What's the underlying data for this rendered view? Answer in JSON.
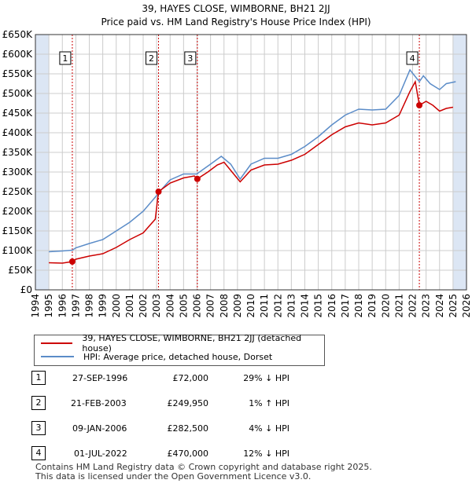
{
  "title": "39, HAYES CLOSE, WIMBORNE, BH21 2JJ",
  "subtitle": "Price paid vs. HM Land Registry's House Price Index (HPI)",
  "legend": {
    "property": "39, HAYES CLOSE, WIMBORNE, BH21 2JJ (detached house)",
    "hpi": "HPI: Average price, detached house, Dorset"
  },
  "colors": {
    "property": "#cc0000",
    "hpi": "#5b8cc8",
    "shade": "#dce6f4",
    "grid": "#cccccc"
  },
  "sales": [
    {
      "num": "1",
      "date": "27-SEP-1996",
      "price": "£72,000",
      "delta": "29% ↓ HPI"
    },
    {
      "num": "2",
      "date": "21-FEB-2003",
      "price": "£249,950",
      "delta": "1% ↑ HPI"
    },
    {
      "num": "3",
      "date": "09-JAN-2006",
      "price": "£282,500",
      "delta": "4% ↓ HPI"
    },
    {
      "num": "4",
      "date": "01-JUL-2022",
      "price": "£470,000",
      "delta": "12% ↓ HPI"
    }
  ],
  "footer": {
    "line1": "Contains HM Land Registry data © Crown copyright and database right 2025.",
    "line2": "This data is licensed under the Open Government Licence v3.0."
  },
  "chart_data": {
    "type": "line",
    "title": "39, HAYES CLOSE, WIMBORNE, BH21 2JJ",
    "subtitle": "Price paid vs. HM Land Registry's House Price Index (HPI)",
    "xlabel": "",
    "ylabel": "",
    "xlim": [
      1994,
      2026
    ],
    "ylim": [
      0,
      650000
    ],
    "x_ticks": [
      1994,
      1995,
      1996,
      1997,
      1998,
      1999,
      2000,
      2001,
      2002,
      2003,
      2004,
      2005,
      2006,
      2007,
      2008,
      2009,
      2010,
      2011,
      2012,
      2013,
      2014,
      2015,
      2016,
      2017,
      2018,
      2019,
      2020,
      2021,
      2022,
      2023,
      2024,
      2025,
      2026
    ],
    "y_ticks": [
      0,
      50000,
      100000,
      150000,
      200000,
      250000,
      300000,
      350000,
      400000,
      450000,
      500000,
      550000,
      600000,
      650000
    ],
    "y_tick_labels": [
      "£0",
      "£50K",
      "£100K",
      "£150K",
      "£200K",
      "£250K",
      "£300K",
      "£350K",
      "£400K",
      "£450K",
      "£500K",
      "£550K",
      "£600K",
      "£650K"
    ],
    "shaded_ranges": [
      [
        1994,
        1995
      ],
      [
        2025,
        2026
      ]
    ],
    "series": [
      {
        "name": "39, HAYES CLOSE, WIMBORNE, BH21 2JJ (detached house)",
        "x": [
          1995,
          1996,
          1996.74,
          1997,
          1998,
          1999,
          2000,
          2001,
          2002,
          2002.9,
          2003.14,
          2004,
          2005,
          2005.8,
          2006.02,
          2006.8,
          2007.5,
          2008,
          2008.6,
          2009.2,
          2010,
          2011,
          2012,
          2013,
          2014,
          2015,
          2016,
          2017,
          2018,
          2019,
          2020,
          2021,
          2021.8,
          2022.2,
          2022.5,
          2023,
          2023.5,
          2024,
          2024.5,
          2025.0
        ],
        "values": [
          69000,
          68000,
          72000,
          78000,
          86000,
          92000,
          108000,
          128000,
          145000,
          180000,
          249950,
          272000,
          285000,
          290000,
          282500,
          300000,
          318000,
          325000,
          300000,
          275000,
          305000,
          318000,
          320000,
          330000,
          345000,
          370000,
          395000,
          415000,
          425000,
          420000,
          425000,
          445000,
          505000,
          530000,
          470000,
          480000,
          470000,
          455000,
          462000,
          465000
        ]
      },
      {
        "name": "HPI: Average price, detached house, Dorset",
        "x": [
          1995,
          1996,
          1996.74,
          1997,
          1998,
          1999,
          2000,
          2001,
          2002,
          2003,
          2003.14,
          2004,
          2005,
          2006,
          2006.02,
          2007,
          2007.8,
          2008.5,
          2009.2,
          2010,
          2011,
          2012,
          2013,
          2014,
          2015,
          2016,
          2017,
          2018,
          2019,
          2020,
          2021,
          2021.8,
          2022.5,
          2022.8,
          2023.3,
          2024,
          2024.5,
          2025.2
        ],
        "values": [
          97000,
          99000,
          101000,
          107000,
          118000,
          128000,
          150000,
          172000,
          200000,
          240000,
          247000,
          280000,
          295000,
          295000,
          296000,
          320000,
          340000,
          320000,
          282000,
          320000,
          335000,
          335000,
          345000,
          365000,
          390000,
          420000,
          445000,
          460000,
          458000,
          460000,
          495000,
          560000,
          530000,
          545000,
          525000,
          510000,
          525000,
          530000
        ]
      }
    ],
    "sales": [
      {
        "label": "1",
        "x": 1996.74,
        "value": 72000
      },
      {
        "label": "2",
        "x": 2003.14,
        "value": 249950
      },
      {
        "label": "3",
        "x": 2006.02,
        "value": 282500
      },
      {
        "label": "4",
        "x": 2022.5,
        "value": 470000
      }
    ],
    "legend": [
      "39, HAYES CLOSE, WIMBORNE, BH21 2JJ (detached house)",
      "HPI: Average price, detached house, Dorset"
    ]
  }
}
